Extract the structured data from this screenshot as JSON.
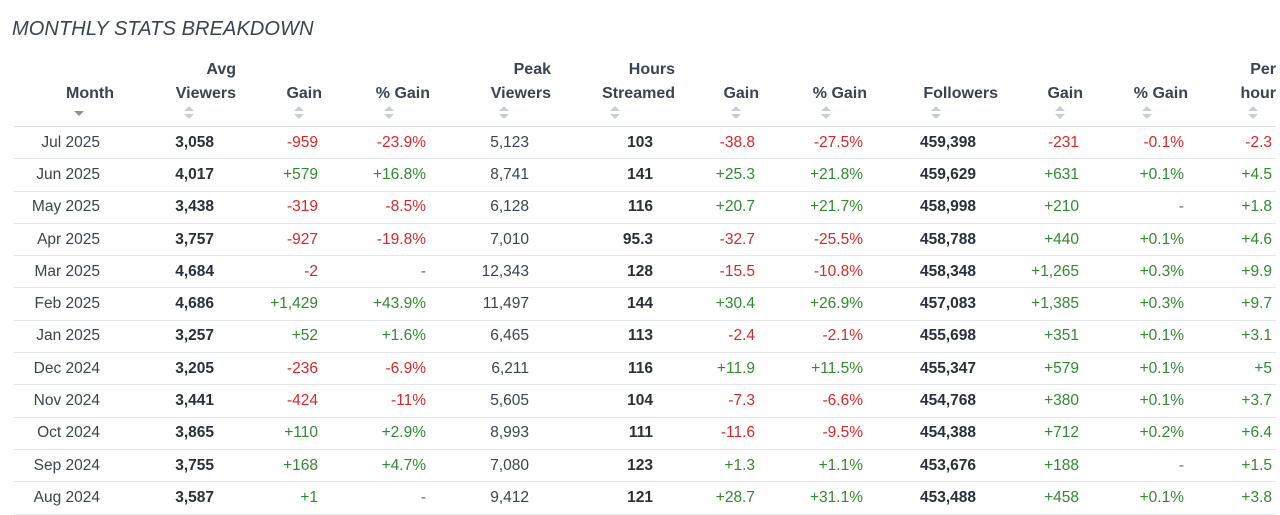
{
  "title": "MONTHLY STATS BREAKDOWN",
  "columns": [
    {
      "l1": "",
      "l2": "Month"
    },
    {
      "l1": "Avg",
      "l2": "Viewers"
    },
    {
      "l1": "",
      "l2": "Gain"
    },
    {
      "l1": "",
      "l2": "% Gain"
    },
    {
      "l1": "Peak",
      "l2": "Viewers"
    },
    {
      "l1": "Hours",
      "l2": "Streamed"
    },
    {
      "l1": "",
      "l2": "Gain"
    },
    {
      "l1": "",
      "l2": "% Gain"
    },
    {
      "l1": "",
      "l2": "Followers"
    },
    {
      "l1": "",
      "l2": "Gain"
    },
    {
      "l1": "",
      "l2": "% Gain"
    },
    {
      "l1": "Per",
      "l2": "hour"
    }
  ],
  "rows": [
    [
      "Jul 2025",
      "3,058",
      "-959",
      "-23.9%",
      "5,123",
      "103",
      "-38.8",
      "-27.5%",
      "459,398",
      "-231",
      "-0.1%",
      "-2.3"
    ],
    [
      "Jun 2025",
      "4,017",
      "+579",
      "+16.8%",
      "8,741",
      "141",
      "+25.3",
      "+21.8%",
      "459,629",
      "+631",
      "+0.1%",
      "+4.5"
    ],
    [
      "May 2025",
      "3,438",
      "-319",
      "-8.5%",
      "6,128",
      "116",
      "+20.7",
      "+21.7%",
      "458,998",
      "+210",
      "-",
      "+1.8"
    ],
    [
      "Apr 2025",
      "3,757",
      "-927",
      "-19.8%",
      "7,010",
      "95.3",
      "-32.7",
      "-25.5%",
      "458,788",
      "+440",
      "+0.1%",
      "+4.6"
    ],
    [
      "Mar 2025",
      "4,684",
      "-2",
      "-",
      "12,343",
      "128",
      "-15.5",
      "-10.8%",
      "458,348",
      "+1,265",
      "+0.3%",
      "+9.9"
    ],
    [
      "Feb 2025",
      "4,686",
      "+1,429",
      "+43.9%",
      "11,497",
      "144",
      "+30.4",
      "+26.9%",
      "457,083",
      "+1,385",
      "+0.3%",
      "+9.7"
    ],
    [
      "Jan 2025",
      "3,257",
      "+52",
      "+1.6%",
      "6,465",
      "113",
      "-2.4",
      "-2.1%",
      "455,698",
      "+351",
      "+0.1%",
      "+3.1"
    ],
    [
      "Dec 2024",
      "3,205",
      "-236",
      "-6.9%",
      "6,211",
      "116",
      "+11.9",
      "+11.5%",
      "455,347",
      "+579",
      "+0.1%",
      "+5"
    ],
    [
      "Nov 2024",
      "3,441",
      "-424",
      "-11%",
      "5,605",
      "104",
      "-7.3",
      "-6.6%",
      "454,768",
      "+380",
      "+0.1%",
      "+3.7"
    ],
    [
      "Oct 2024",
      "3,865",
      "+110",
      "+2.9%",
      "8,993",
      "111",
      "-11.6",
      "-9.5%",
      "454,388",
      "+712",
      "+0.2%",
      "+6.4"
    ],
    [
      "Sep 2024",
      "3,755",
      "+168",
      "+4.7%",
      "7,080",
      "123",
      "+1.3",
      "+1.1%",
      "453,676",
      "+188",
      "-",
      "+1.5"
    ],
    [
      "Aug 2024",
      "3,587",
      "+1",
      "-",
      "9,412",
      "121",
      "+28.7",
      "+31.1%",
      "453,488",
      "+458",
      "+0.1%",
      "+3.8"
    ]
  ],
  "colors": {
    "positive": "#2e8b2e",
    "negative": "#d62828",
    "text": "#3a4352"
  }
}
